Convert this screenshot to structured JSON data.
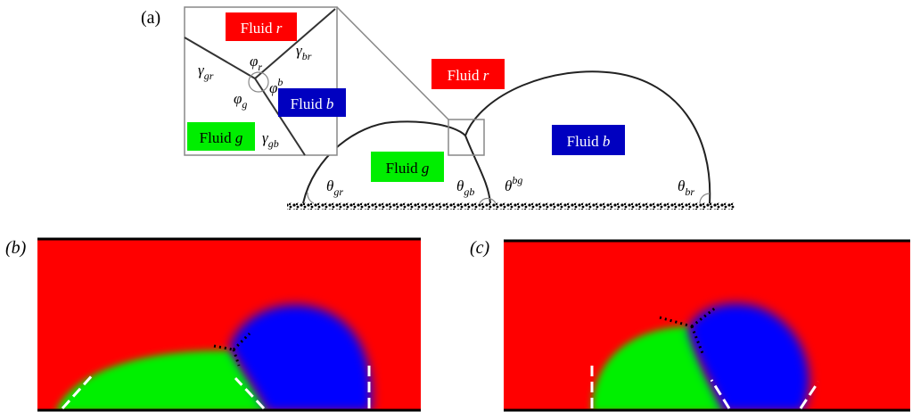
{
  "panels": {
    "a": {
      "label": "(a)"
    },
    "b": {
      "label": "(b)"
    },
    "c": {
      "label": "(c)"
    }
  },
  "fluids": {
    "r": {
      "word": "Fluid",
      "letter": "r",
      "color": "#ff0000"
    },
    "b": {
      "word": "Fluid",
      "letter": "b",
      "color": "#0000c0"
    },
    "g": {
      "word": "Fluid",
      "letter": "g",
      "color": "#00ee00"
    }
  },
  "inset_symbols": {
    "gamma_gr": {
      "base": "γ",
      "sub": "gr"
    },
    "gamma_br": {
      "base": "γ",
      "sub": "br"
    },
    "gamma_gb": {
      "base": "γ",
      "sub": "gb"
    },
    "phi_r": {
      "base": "φ",
      "sub": "r"
    },
    "phi_b": {
      "base": "φ",
      "sup": "b"
    },
    "phi_g": {
      "base": "φ",
      "sub": "g"
    }
  },
  "contact_angles": {
    "theta_gr": {
      "base": "θ",
      "sub": "gr"
    },
    "theta_gb": {
      "base": "θ",
      "sub": "gb"
    },
    "theta_bg": {
      "base": "θ",
      "sup": "bg"
    },
    "theta_br": {
      "base": "θ",
      "sub": "br"
    }
  },
  "colors": {
    "red": "#ff0000",
    "blue": "#0000ff",
    "green": "#00f000",
    "line": "#000000",
    "dashed": "#ffffff"
  }
}
